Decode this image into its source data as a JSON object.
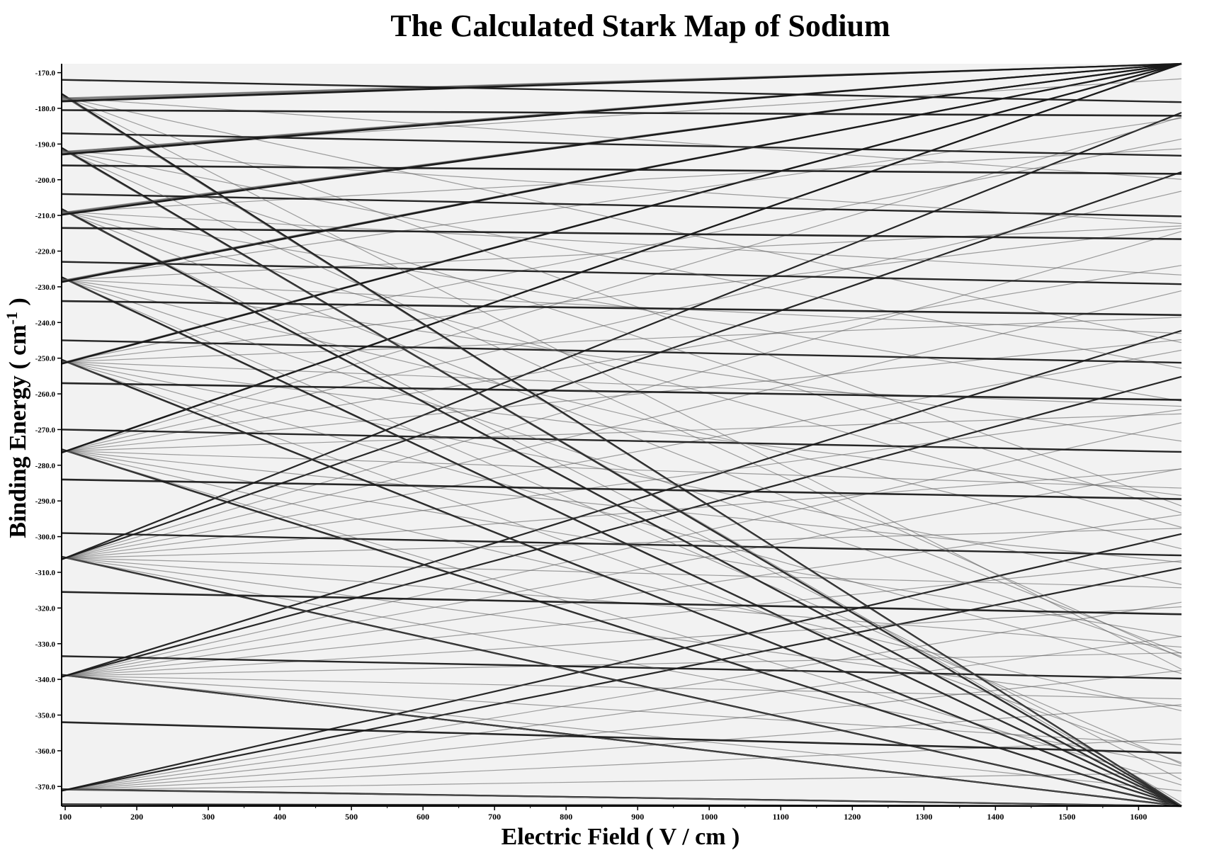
{
  "chart_data": {
    "type": "line",
    "title": "The Calculated Stark Map of Sodium",
    "xlabel": "Electric Field ( V / cm )",
    "ylabel": {
      "prefix": "Binding Energy ( cm",
      "superscript": "-1",
      "suffix": " )"
    },
    "xlim": [
      95,
      1660
    ],
    "ylim": [
      -375.5,
      -167.5
    ],
    "x_ticks": [
      100,
      200,
      300,
      400,
      500,
      600,
      700,
      800,
      900,
      1000,
      1100,
      1200,
      1300,
      1400,
      1500,
      1600
    ],
    "x_tick_labels": [
      "100",
      "200",
      "300",
      "400",
      "500",
      "600",
      "700",
      "800",
      "900",
      "1000",
      "1100",
      "1200",
      "1300",
      "1400",
      "1500",
      "1600"
    ],
    "y_ticks": [
      -170,
      -180,
      -190,
      -200,
      -210,
      -220,
      -230,
      -240,
      -250,
      -260,
      -270,
      -280,
      -290,
      -300,
      -310,
      -320,
      -330,
      -340,
      -350,
      -360,
      -370
    ],
    "y_tick_labels": [
      "-170.0",
      "-180.0",
      "-190.0",
      "-200.0",
      "-210.0",
      "-220.0",
      "-230.0",
      "-240.0",
      "-250.0",
      "-260.0",
      "-270.0",
      "-280.0",
      "-290.0",
      "-300.0",
      "-310.0",
      "-320.0",
      "-330.0",
      "-340.0",
      "-350.0",
      "-360.0",
      "-370.0"
    ],
    "grid": false,
    "legend": "none",
    "background_color": "#f2f2f2",
    "line_color": "#1a1a1a",
    "manifolds": [
      {
        "center": -371.0,
        "x0": 100,
        "half_width_per_100": 0.46,
        "n_states": 16,
        "s_state": -375.0
      },
      {
        "center": -339.0,
        "x0": 100,
        "half_width_per_100": 0.62,
        "n_states": 16,
        "s_state": -333.5
      },
      {
        "center": -306.0,
        "x0": 100,
        "half_width_per_100": 0.8,
        "n_states": 16,
        "s_state": -299.0
      },
      {
        "center": -276.0,
        "x0": 100,
        "half_width_per_100": 1.0,
        "n_states": 16,
        "s_state": -270.0
      },
      {
        "center": -251.0,
        "x0": 100,
        "half_width_per_100": 1.2,
        "n_states": 16,
        "s_state": -245.0
      },
      {
        "center": -228.0,
        "x0": 100,
        "half_width_per_100": 1.45,
        "n_states": 16,
        "s_state": -223.0
      },
      {
        "center": -209.0,
        "x0": 100,
        "half_width_per_100": 1.7,
        "n_states": 16,
        "s_state": -204.0
      },
      {
        "center": -192.0,
        "x0": 100,
        "half_width_per_100": 1.95,
        "n_states": 16,
        "s_state": -187.0
      },
      {
        "center": -177.0,
        "x0": 100,
        "half_width_per_100": 2.2,
        "n_states": 16,
        "s_state": -172.0
      }
    ],
    "p_states": [
      {
        "value": -352.0,
        "slope_per_100": -0.55
      },
      {
        "value": -315.5,
        "slope_per_100": -0.4
      },
      {
        "value": -284.0,
        "slope_per_100": -0.35
      },
      {
        "value": -257.0,
        "slope_per_100": -0.3
      },
      {
        "value": -234.0,
        "slope_per_100": -0.25
      },
      {
        "value": -213.5,
        "slope_per_100": -0.2
      },
      {
        "value": -196.0,
        "slope_per_100": -0.15
      },
      {
        "value": -180.5,
        "slope_per_100": -0.1
      }
    ]
  }
}
